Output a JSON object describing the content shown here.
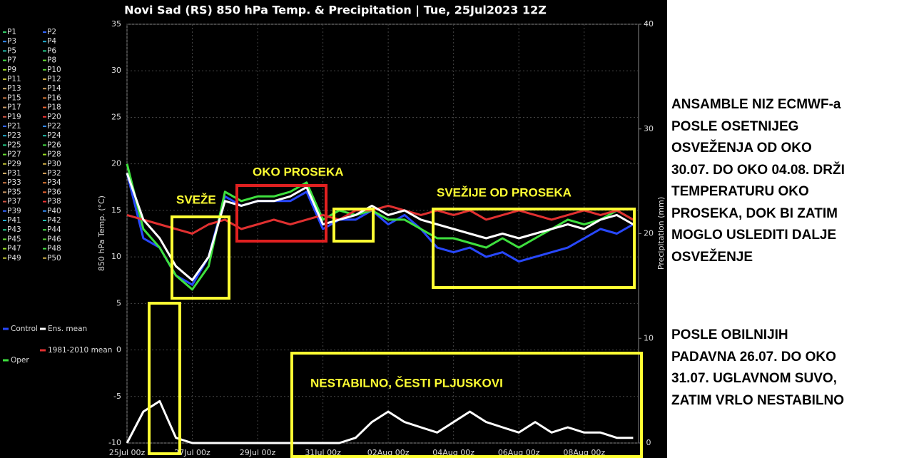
{
  "chart_data": {
    "type": "line",
    "title": "Novi Sad  (RS)  850 hPa Temp. & Precipitation | Tue, 25Jul2023 12Z",
    "y_label": "850 hPa Temp. (°C)",
    "y2_label": "Precipitation (mm)",
    "x": [
      0,
      12,
      24,
      36,
      48,
      60,
      72,
      84,
      96,
      108,
      120,
      132,
      144,
      156,
      168,
      180,
      192,
      204,
      216,
      228,
      240,
      252,
      264,
      276,
      288,
      300,
      312,
      324,
      336,
      348,
      360,
      372
    ],
    "xlim": [
      0,
      376
    ],
    "xticks": [
      {
        "value": 0,
        "label": "25Jul 00z"
      },
      {
        "value": 48,
        "label": "27Jul 00z"
      },
      {
        "value": 96,
        "label": "29Jul 00z"
      },
      {
        "value": 144,
        "label": "31Jul 00z"
      },
      {
        "value": 192,
        "label": "02Aug 00z"
      },
      {
        "value": 240,
        "label": "04Aug 00z"
      },
      {
        "value": 288,
        "label": "06Aug 00z"
      },
      {
        "value": 336,
        "label": "08Aug 00z"
      }
    ],
    "ylim": [
      -10,
      35
    ],
    "yticks": [
      -10,
      -5,
      0,
      5,
      10,
      15,
      20,
      25,
      30,
      35
    ],
    "y2lim": [
      0,
      40
    ],
    "y2ticks": [
      0,
      10,
      20,
      30,
      40
    ],
    "grid": true,
    "series": [
      {
        "name": "Control",
        "color": "#2848ff",
        "values": [
          19,
          12,
          11,
          8,
          7,
          10,
          16.5,
          15.5,
          16,
          16,
          16,
          17,
          13,
          14,
          14,
          15,
          13.5,
          14.5,
          13,
          11,
          10.5,
          11,
          10,
          10.5,
          9.5,
          10,
          10.5,
          11,
          12,
          13,
          12.5,
          13.5
        ]
      },
      {
        "name": "Oper",
        "color": "#3ee03e",
        "values": [
          20,
          13,
          11,
          8,
          6.5,
          9,
          17,
          16,
          16.5,
          16.5,
          17,
          18,
          14,
          15,
          14.5,
          15,
          14,
          14,
          13,
          12,
          12,
          11.5,
          11,
          12,
          11,
          12,
          13,
          14,
          13.5,
          14,
          15,
          14
        ]
      },
      {
        "name": "1981-2010 mean",
        "color": "#e03030",
        "values": [
          14.5,
          14,
          13.5,
          13,
          12.5,
          13.5,
          14,
          13,
          13.5,
          14,
          13.5,
          14,
          14.5,
          14,
          15,
          15,
          15.5,
          15,
          14.5,
          15,
          14.5,
          15,
          14,
          14.5,
          15,
          14.5,
          14,
          14.5,
          15,
          14.5,
          15,
          14
        ]
      },
      {
        "name": "Ens. mean",
        "color": "#ffffff",
        "values": [
          19,
          14,
          12,
          9,
          7.5,
          10,
          16,
          15.5,
          16,
          16,
          16.5,
          17.5,
          13.5,
          14,
          14.5,
          15.5,
          14.5,
          15,
          14,
          13.5,
          13,
          12.5,
          12,
          12.5,
          12,
          12.5,
          13,
          13.5,
          13,
          14,
          14.5,
          13.5
        ]
      },
      {
        "name": "Ens. mean",
        "color": "#ffffff",
        "axis": "y2",
        "values": [
          0,
          3,
          4,
          0.5,
          0,
          0,
          0,
          0,
          0,
          0,
          0,
          0,
          0,
          0,
          0.5,
          2,
          3,
          2,
          1.5,
          1,
          2,
          3,
          2,
          1.5,
          1,
          2,
          1,
          1.5,
          1,
          1,
          0.5,
          0.5
        ]
      }
    ],
    "members": [
      {
        "name": "P1",
        "color": "#33cc66"
      },
      {
        "name": "P2",
        "color": "#3366ff"
      },
      {
        "name": "P3",
        "color": "#3388ee"
      },
      {
        "name": "P4",
        "color": "#22aacc"
      },
      {
        "name": "P5",
        "color": "#22bbaa"
      },
      {
        "name": "P6",
        "color": "#22cc88"
      },
      {
        "name": "P7",
        "color": "#44dd44"
      },
      {
        "name": "P8",
        "color": "#66dd33"
      },
      {
        "name": "P9",
        "color": "#99dd22"
      },
      {
        "name": "P10",
        "color": "#55cc33"
      },
      {
        "name": "P11",
        "color": "#bbbb33"
      },
      {
        "name": "P12",
        "color": "#ccaa44"
      },
      {
        "name": "P13",
        "color": "#ccaa66"
      },
      {
        "name": "P14",
        "color": "#cc9955"
      },
      {
        "name": "P15",
        "color": "#cc7744"
      },
      {
        "name": "P16",
        "color": "#dd7733"
      },
      {
        "name": "P17",
        "color": "#cc9966"
      },
      {
        "name": "P18",
        "color": "#ee6633"
      },
      {
        "name": "P19",
        "color": "#cc5544"
      },
      {
        "name": "P20",
        "color": "#ee3333"
      },
      {
        "name": "P21",
        "color": "#3366ff"
      },
      {
        "name": "P22",
        "color": "#3388ee"
      },
      {
        "name": "P23",
        "color": "#22aacc"
      },
      {
        "name": "P24",
        "color": "#22bbaa"
      },
      {
        "name": "P25",
        "color": "#22cc88"
      },
      {
        "name": "P26",
        "color": "#44dd44"
      },
      {
        "name": "P27",
        "color": "#66dd33"
      },
      {
        "name": "P28",
        "color": "#99dd22"
      },
      {
        "name": "P29",
        "color": "#bbbb33"
      },
      {
        "name": "P30",
        "color": "#ccaa44"
      },
      {
        "name": "P31",
        "color": "#ccaa66"
      },
      {
        "name": "P32",
        "color": "#cc9955"
      },
      {
        "name": "P33",
        "color": "#cc7744"
      },
      {
        "name": "P34",
        "color": "#dd7733"
      },
      {
        "name": "P35",
        "color": "#cc9966"
      },
      {
        "name": "P36",
        "color": "#ee6633"
      },
      {
        "name": "P37",
        "color": "#cc5544"
      },
      {
        "name": "P38",
        "color": "#ee3333"
      },
      {
        "name": "P39",
        "color": "#3366ff"
      },
      {
        "name": "P40",
        "color": "#3388ee"
      },
      {
        "name": "P41",
        "color": "#22aacc"
      },
      {
        "name": "P42",
        "color": "#22bbaa"
      },
      {
        "name": "P43",
        "color": "#22cc88"
      },
      {
        "name": "P44",
        "color": "#44dd44"
      },
      {
        "name": "P45",
        "color": "#66dd33"
      },
      {
        "name": "P46",
        "color": "#55cc33"
      },
      {
        "name": "P47",
        "color": "#99dd22"
      },
      {
        "name": "P48",
        "color": "#44dd44"
      },
      {
        "name": "P49",
        "color": "#bbbb33"
      },
      {
        "name": "P50",
        "color": "#ccaa44"
      }
    ],
    "annotations": [
      "SVEŽE",
      "OKO PROSEKA",
      "SVEŽIJE OD PROSEKA",
      "NESTABILNO, ČESTI PLJUSKOVI"
    ]
  },
  "notes": [
    [
      "ANSAMBLE NIZ ECMWF-a",
      "POSLE OSETNIJEG",
      "OSVEŽENJA OD OKO",
      "30.07. DO OKO 04.08. DRŽI",
      "TEMPERATURU OKO",
      "PROSEKA, DOK BI ZATIM",
      "MOGLO USLEDITI DALJE",
      "OSVEŽENJE"
    ],
    [
      "POSLE OBILNIJIH",
      "PADAVNA 26.07. DO OKO",
      "31.07. UGLAVNOM SUVO,",
      "ZATIM VRLO NESTABILNO"
    ]
  ]
}
